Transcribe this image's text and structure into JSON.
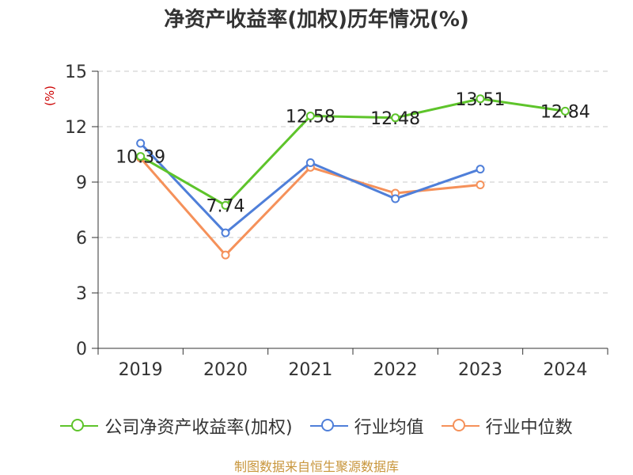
{
  "title": "净资产收益率(加权)历年情况(%)",
  "unit_label": "(%)",
  "source": "制图数据来自恒生聚源数据库",
  "colors": {
    "company": "#5ec42b",
    "industry_avg": "#4f7fd9",
    "industry_median": "#f5915a",
    "unit": "#cc0000",
    "source": "#c8963c"
  },
  "chart_data": {
    "type": "line",
    "title": "净资产收益率(加权)历年情况(%)",
    "ylabel": "(%)",
    "categories": [
      "2019",
      "2020",
      "2021",
      "2022",
      "2023",
      "2024"
    ],
    "ylim": [
      0,
      15
    ],
    "yticks": [
      0,
      3,
      6,
      9,
      12,
      15
    ],
    "grid": true,
    "legend": "bottom",
    "series": [
      {
        "name": "公司净资产收益率(加权)",
        "values": [
          10.39,
          7.74,
          12.58,
          12.48,
          13.51,
          12.84
        ],
        "labels": [
          "10.39",
          "7.74",
          "12.58",
          "12.48",
          "13.51",
          "12.84"
        ],
        "color": "#5ec42b"
      },
      {
        "name": "行业均值",
        "values": [
          11.1,
          6.25,
          10.05,
          8.1,
          9.7,
          null
        ],
        "color": "#4f7fd9"
      },
      {
        "name": "行业中位数",
        "values": [
          10.3,
          5.05,
          9.8,
          8.4,
          8.85,
          null
        ],
        "color": "#f5915a"
      }
    ]
  }
}
